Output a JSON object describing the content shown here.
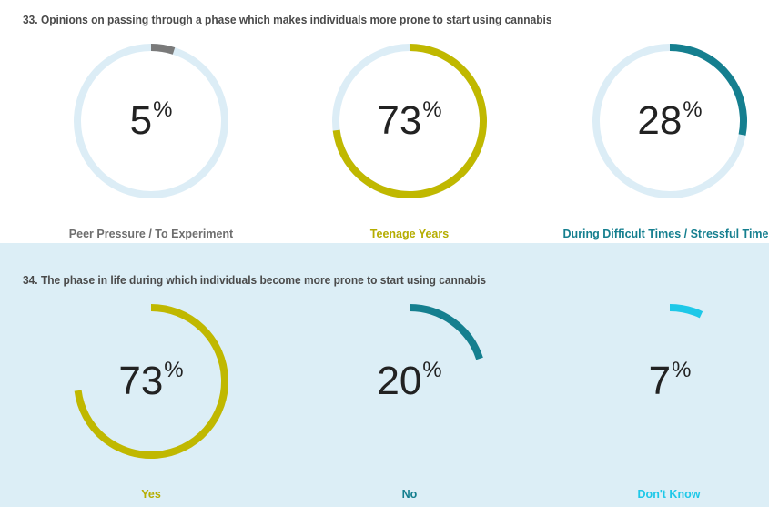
{
  "colors": {
    "track": "#dcedf6",
    "grey": "#7a7a7a",
    "olive": "#c0b800",
    "teal": "#157f8f",
    "cyan": "#1ec8e8",
    "label_grey": "#6e6e6e"
  },
  "chart_data": [
    {
      "type": "donut",
      "title": "33. Opinions on passing through a phase which makes individuals more prone to start using cannabis",
      "items": [
        {
          "label": "Peer Pressure / To Experiment",
          "value": 5,
          "display": "5",
          "unit": "%",
          "color": "#7a7a7a",
          "label_color": "#6e6e6e"
        },
        {
          "label": "Teenage Years",
          "value": 73,
          "display": "73",
          "unit": "%",
          "color": "#c0b800",
          "label_color": "#b5ad00"
        },
        {
          "label": "During Difficult Times / Stressful Times",
          "value": 28,
          "display": "28",
          "unit": "%",
          "color": "#157f8f",
          "label_color": "#157f8f"
        }
      ],
      "show_track": true
    },
    {
      "type": "donut",
      "title": "34. The phase in life during which individuals become more prone to start using cannabis",
      "items": [
        {
          "label": "Yes",
          "value": 73,
          "display": "73",
          "unit": "%",
          "color": "#c0b800",
          "label_color": "#b5ad00"
        },
        {
          "label": "No",
          "value": 20,
          "display": "20",
          "unit": "%",
          "color": "#157f8f",
          "label_color": "#157f8f"
        },
        {
          "label": "Don't Know",
          "value": 7,
          "display": "7",
          "unit": "%",
          "color": "#1ec8e8",
          "label_color": "#1ec8e8"
        }
      ],
      "show_track": false
    }
  ]
}
